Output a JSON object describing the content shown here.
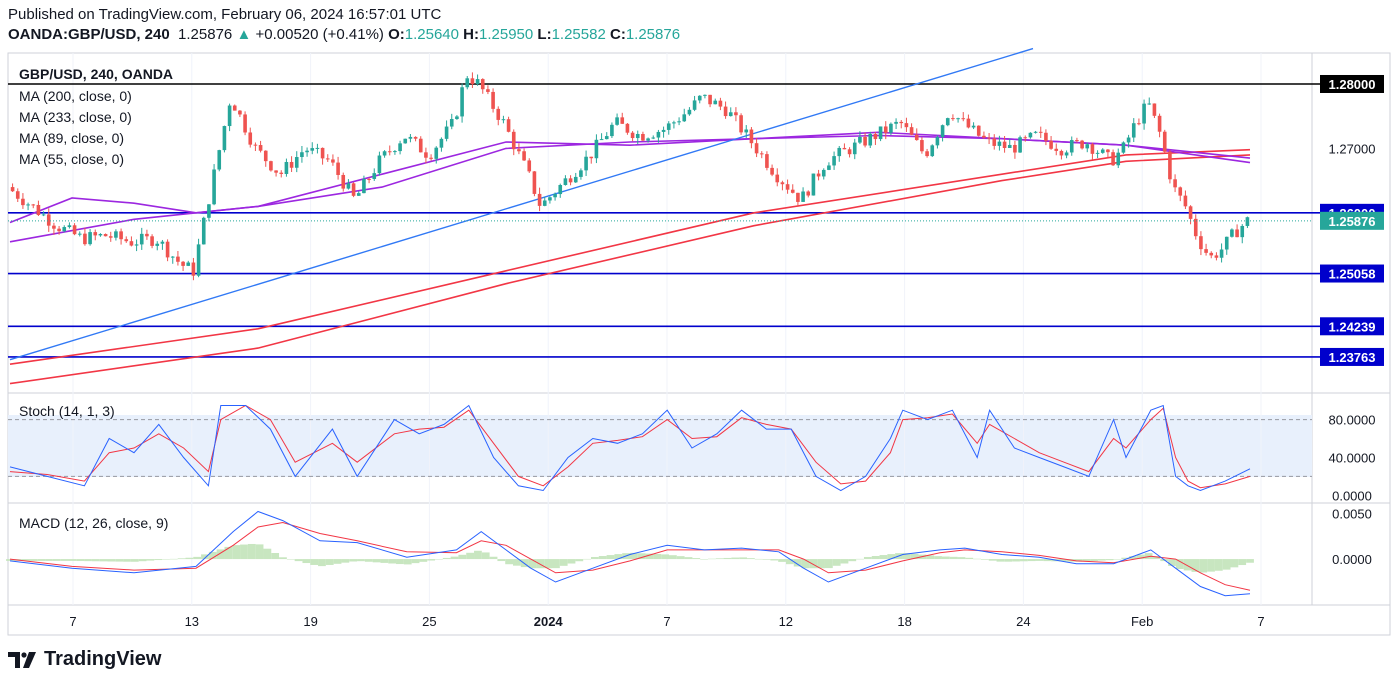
{
  "header": {
    "published": "Published on TradingView.com, February 06, 2024 16:57:01 UTC",
    "symbol": "OANDA:GBP/USD, 240",
    "last": "1.25876",
    "change": "+0.00520 (+0.41%)",
    "open_label": "O:",
    "open": "1.25640",
    "high_label": "H:",
    "high": "1.25950",
    "low_label": "L:",
    "low": "1.25582",
    "close_label": "C:",
    "close": "1.25876"
  },
  "legend": {
    "title": "GBP/USD, 240, OANDA",
    "ma200": "MA (200, close, 0)",
    "ma233": "MA (233, close, 0)",
    "ma89": "MA (89, close, 0)",
    "ma55": "MA (55, close, 0)",
    "stoch": "Stoch (14, 1, 3)",
    "macd": "MACD (12, 26, close, 9)"
  },
  "footer": {
    "brand": "TradingView"
  },
  "colors": {
    "up": "#26a69a",
    "down": "#ef5350",
    "level": "#0000cc",
    "trend": "#3179f5",
    "ma_red": "#f23645",
    "ma_purple": "#9c27e0",
    "stoch_k": "#2962ff",
    "stoch_d": "#f23645",
    "stoch_band": "#e8f0fc",
    "macd_hist": "#c8e6c0"
  },
  "chart_data": [
    {
      "type": "candlestick",
      "title": "GBP/USD, 240, OANDA",
      "ylim": [
        1.2325,
        1.2845
      ],
      "y_ticks": [
        "1.27000"
      ],
      "x_ticks": [
        "7",
        "13",
        "19",
        "25",
        "2024",
        "7",
        "12",
        "18",
        "24",
        "Feb",
        "7"
      ],
      "horizontal_levels": [
        {
          "label": "1.28000",
          "value": 1.28,
          "color": "#000000"
        },
        {
          "label": "1.26000",
          "value": 1.26,
          "color": "#0000cc"
        },
        {
          "label": "1.25058",
          "value": 1.25058,
          "color": "#0000cc"
        },
        {
          "label": "1.24239",
          "value": 1.24239,
          "color": "#0000cc"
        },
        {
          "label": "1.23763",
          "value": 1.23763,
          "color": "#0000cc"
        }
      ],
      "last_price": {
        "label": "1.25876",
        "value": 1.25876
      },
      "trendline": {
        "from": [
          0,
          1.2372
        ],
        "to": [
          0.825,
          1.2855
        ]
      },
      "close_path": [
        [
          0,
          1.264
        ],
        [
          0.02,
          1.261
        ],
        [
          0.04,
          1.258
        ],
        [
          0.06,
          1.256
        ],
        [
          0.08,
          1.2565
        ],
        [
          0.1,
          1.2555
        ],
        [
          0.12,
          1.256
        ],
        [
          0.14,
          1.252
        ],
        [
          0.15,
          1.251
        ],
        [
          0.17,
          1.269
        ],
        [
          0.18,
          1.278
        ],
        [
          0.2,
          1.27
        ],
        [
          0.22,
          1.266
        ],
        [
          0.24,
          1.27
        ],
        [
          0.26,
          1.268
        ],
        [
          0.28,
          1.262
        ],
        [
          0.3,
          1.268
        ],
        [
          0.32,
          1.272
        ],
        [
          0.34,
          1.269
        ],
        [
          0.36,
          1.274
        ],
        [
          0.37,
          1.2815
        ],
        [
          0.38,
          1.28
        ],
        [
          0.4,
          1.274
        ],
        [
          0.42,
          1.266
        ],
        [
          0.43,
          1.261
        ],
        [
          0.45,
          1.265
        ],
        [
          0.47,
          1.269
        ],
        [
          0.49,
          1.274
        ],
        [
          0.51,
          1.272
        ],
        [
          0.53,
          1.273
        ],
        [
          0.55,
          1.276
        ],
        [
          0.56,
          1.278
        ],
        [
          0.58,
          1.276
        ],
        [
          0.6,
          1.271
        ],
        [
          0.62,
          1.266
        ],
        [
          0.64,
          1.262
        ],
        [
          0.66,
          1.268
        ],
        [
          0.68,
          1.27
        ],
        [
          0.7,
          1.272
        ],
        [
          0.72,
          1.274
        ],
        [
          0.74,
          1.269
        ],
        [
          0.76,
          1.276
        ],
        [
          0.77,
          1.274
        ],
        [
          0.79,
          1.271
        ],
        [
          0.81,
          1.27
        ],
        [
          0.83,
          1.272
        ],
        [
          0.85,
          1.27
        ],
        [
          0.87,
          1.271
        ],
        [
          0.89,
          1.268
        ],
        [
          0.9,
          1.27
        ],
        [
          0.91,
          1.274
        ],
        [
          0.92,
          1.277
        ],
        [
          0.93,
          1.272
        ],
        [
          0.94,
          1.264
        ],
        [
          0.95,
          1.261
        ],
        [
          0.96,
          1.256
        ],
        [
          0.97,
          1.253
        ],
        [
          0.98,
          1.2545
        ],
        [
          0.99,
          1.257
        ],
        [
          1.0,
          1.25876
        ]
      ],
      "series": [
        {
          "name": "MA (200, close, 0)",
          "color": "#f23645",
          "path": [
            [
              0,
              1.2365
            ],
            [
              0.2,
              1.242
            ],
            [
              0.4,
              1.251
            ],
            [
              0.6,
              1.26
            ],
            [
              0.8,
              1.266
            ],
            [
              0.9,
              1.269
            ],
            [
              1.0,
              1.2698
            ]
          ]
        },
        {
          "name": "MA (233, close, 0)",
          "color": "#f23645",
          "path": [
            [
              0,
              1.2335
            ],
            [
              0.2,
              1.239
            ],
            [
              0.4,
              1.249
            ],
            [
              0.6,
              1.258
            ],
            [
              0.8,
              1.265
            ],
            [
              0.9,
              1.268
            ],
            [
              1.0,
              1.269
            ]
          ]
        },
        {
          "name": "MA (89, close, 0)",
          "color": "#9c27e0",
          "path": [
            [
              0,
              1.2555
            ],
            [
              0.1,
              1.259
            ],
            [
              0.2,
              1.261
            ],
            [
              0.3,
              1.264
            ],
            [
              0.4,
              1.27
            ],
            [
              0.5,
              1.271
            ],
            [
              0.6,
              1.2715
            ],
            [
              0.7,
              1.272
            ],
            [
              0.8,
              1.2715
            ],
            [
              0.9,
              1.2705
            ],
            [
              1.0,
              1.2685
            ]
          ]
        },
        {
          "name": "MA (55, close, 0)",
          "color": "#9c27e0",
          "path": [
            [
              0,
              1.2585
            ],
            [
              0.05,
              1.2623
            ],
            [
              0.1,
              1.2615
            ],
            [
              0.15,
              1.26
            ],
            [
              0.2,
              1.261
            ],
            [
              0.3,
              1.266
            ],
            [
              0.4,
              1.271
            ],
            [
              0.5,
              1.2705
            ],
            [
              0.6,
              1.2715
            ],
            [
              0.7,
              1.2725
            ],
            [
              0.8,
              1.2715
            ],
            [
              0.9,
              1.2705
            ],
            [
              1.0,
              1.2678
            ]
          ]
        }
      ]
    },
    {
      "type": "line",
      "title": "Stoch (14, 1, 3)",
      "ylim": [
        -5,
        105
      ],
      "y_ticks": [
        "80.0000",
        "40.0000",
        "0.0000"
      ],
      "band": [
        20,
        80
      ],
      "k": [
        [
          0,
          30
        ],
        [
          0.03,
          20
        ],
        [
          0.06,
          10
        ],
        [
          0.08,
          60
        ],
        [
          0.1,
          45
        ],
        [
          0.12,
          75
        ],
        [
          0.14,
          40
        ],
        [
          0.16,
          10
        ],
        [
          0.17,
          95
        ],
        [
          0.19,
          95
        ],
        [
          0.21,
          70
        ],
        [
          0.23,
          20
        ],
        [
          0.26,
          70
        ],
        [
          0.28,
          20
        ],
        [
          0.31,
          80
        ],
        [
          0.33,
          65
        ],
        [
          0.35,
          75
        ],
        [
          0.37,
          95
        ],
        [
          0.39,
          40
        ],
        [
          0.41,
          10
        ],
        [
          0.43,
          5
        ],
        [
          0.45,
          40
        ],
        [
          0.47,
          60
        ],
        [
          0.49,
          55
        ],
        [
          0.51,
          65
        ],
        [
          0.53,
          90
        ],
        [
          0.55,
          50
        ],
        [
          0.57,
          65
        ],
        [
          0.59,
          90
        ],
        [
          0.61,
          70
        ],
        [
          0.63,
          70
        ],
        [
          0.65,
          20
        ],
        [
          0.67,
          5
        ],
        [
          0.69,
          20
        ],
        [
          0.71,
          60
        ],
        [
          0.72,
          90
        ],
        [
          0.74,
          80
        ],
        [
          0.76,
          90
        ],
        [
          0.78,
          40
        ],
        [
          0.79,
          90
        ],
        [
          0.81,
          50
        ],
        [
          0.83,
          40
        ],
        [
          0.85,
          30
        ],
        [
          0.87,
          20
        ],
        [
          0.89,
          80
        ],
        [
          0.9,
          40
        ],
        [
          0.92,
          90
        ],
        [
          0.93,
          95
        ],
        [
          0.94,
          20
        ],
        [
          0.95,
          10
        ],
        [
          0.96,
          5
        ],
        [
          0.98,
          15
        ],
        [
          1.0,
          28
        ]
      ],
      "d": [
        [
          0,
          25
        ],
        [
          0.03,
          22
        ],
        [
          0.06,
          15
        ],
        [
          0.08,
          45
        ],
        [
          0.1,
          50
        ],
        [
          0.12,
          65
        ],
        [
          0.14,
          50
        ],
        [
          0.16,
          25
        ],
        [
          0.17,
          80
        ],
        [
          0.19,
          95
        ],
        [
          0.21,
          80
        ],
        [
          0.23,
          35
        ],
        [
          0.26,
          55
        ],
        [
          0.28,
          35
        ],
        [
          0.31,
          65
        ],
        [
          0.33,
          70
        ],
        [
          0.35,
          72
        ],
        [
          0.37,
          90
        ],
        [
          0.39,
          55
        ],
        [
          0.41,
          20
        ],
        [
          0.43,
          10
        ],
        [
          0.45,
          30
        ],
        [
          0.47,
          55
        ],
        [
          0.49,
          58
        ],
        [
          0.51,
          62
        ],
        [
          0.53,
          80
        ],
        [
          0.55,
          60
        ],
        [
          0.57,
          62
        ],
        [
          0.59,
          82
        ],
        [
          0.61,
          75
        ],
        [
          0.63,
          70
        ],
        [
          0.65,
          35
        ],
        [
          0.67,
          12
        ],
        [
          0.69,
          15
        ],
        [
          0.71,
          45
        ],
        [
          0.72,
          80
        ],
        [
          0.74,
          82
        ],
        [
          0.76,
          86
        ],
        [
          0.78,
          55
        ],
        [
          0.79,
          75
        ],
        [
          0.81,
          60
        ],
        [
          0.83,
          45
        ],
        [
          0.85,
          35
        ],
        [
          0.87,
          25
        ],
        [
          0.89,
          60
        ],
        [
          0.9,
          50
        ],
        [
          0.92,
          80
        ],
        [
          0.93,
          92
        ],
        [
          0.94,
          40
        ],
        [
          0.95,
          15
        ],
        [
          0.96,
          8
        ],
        [
          0.98,
          12
        ],
        [
          1.0,
          20
        ]
      ]
    },
    {
      "type": "line",
      "title": "MACD (12, 26, close, 9)",
      "ylim": [
        -0.0048,
        0.0058
      ],
      "y_ticks": [
        "0.0050",
        "0.0000"
      ],
      "macd": [
        [
          0,
          -0.0002
        ],
        [
          0.05,
          -0.001
        ],
        [
          0.1,
          -0.0015
        ],
        [
          0.15,
          -0.0008
        ],
        [
          0.18,
          0.003
        ],
        [
          0.2,
          0.0052
        ],
        [
          0.22,
          0.0042
        ],
        [
          0.25,
          0.002
        ],
        [
          0.28,
          0.0018
        ],
        [
          0.32,
          0.0002
        ],
        [
          0.36,
          0.001
        ],
        [
          0.38,
          0.003
        ],
        [
          0.4,
          0.001
        ],
        [
          0.42,
          -0.001
        ],
        [
          0.44,
          -0.0025
        ],
        [
          0.47,
          -0.001
        ],
        [
          0.5,
          0.0005
        ],
        [
          0.53,
          0.0015
        ],
        [
          0.56,
          0.001
        ],
        [
          0.59,
          0.0012
        ],
        [
          0.62,
          0.0008
        ],
        [
          0.64,
          -0.001
        ],
        [
          0.66,
          -0.0025
        ],
        [
          0.69,
          -0.001
        ],
        [
          0.72,
          0.0005
        ],
        [
          0.75,
          0.001
        ],
        [
          0.77,
          0.0012
        ],
        [
          0.8,
          0.0005
        ],
        [
          0.83,
          0.0002
        ],
        [
          0.86,
          -0.0005
        ],
        [
          0.89,
          -0.0005
        ],
        [
          0.92,
          0.001
        ],
        [
          0.94,
          -0.001
        ],
        [
          0.96,
          -0.003
        ],
        [
          0.98,
          -0.004
        ],
        [
          1.0,
          -0.0038
        ]
      ],
      "signal": [
        [
          0,
          0.0
        ],
        [
          0.05,
          -0.0008
        ],
        [
          0.1,
          -0.0012
        ],
        [
          0.15,
          -0.001
        ],
        [
          0.18,
          0.0015
        ],
        [
          0.2,
          0.0035
        ],
        [
          0.22,
          0.004
        ],
        [
          0.25,
          0.0028
        ],
        [
          0.28,
          0.002
        ],
        [
          0.32,
          0.0008
        ],
        [
          0.36,
          0.0007
        ],
        [
          0.38,
          0.002
        ],
        [
          0.4,
          0.0015
        ],
        [
          0.42,
          0.0
        ],
        [
          0.44,
          -0.0015
        ],
        [
          0.47,
          -0.0012
        ],
        [
          0.5,
          -0.0002
        ],
        [
          0.53,
          0.001
        ],
        [
          0.56,
          0.001
        ],
        [
          0.59,
          0.001
        ],
        [
          0.62,
          0.001
        ],
        [
          0.64,
          0.0
        ],
        [
          0.66,
          -0.0015
        ],
        [
          0.69,
          -0.0012
        ],
        [
          0.72,
          -0.0002
        ],
        [
          0.75,
          0.0007
        ],
        [
          0.77,
          0.001
        ],
        [
          0.8,
          0.0008
        ],
        [
          0.83,
          0.0004
        ],
        [
          0.86,
          -0.0002
        ],
        [
          0.89,
          -0.0004
        ],
        [
          0.92,
          0.0003
        ],
        [
          0.94,
          0.0
        ],
        [
          0.96,
          -0.0015
        ],
        [
          0.98,
          -0.0028
        ],
        [
          1.0,
          -0.0034
        ]
      ]
    }
  ]
}
